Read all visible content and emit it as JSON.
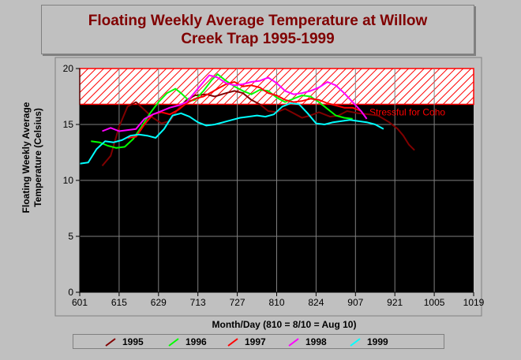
{
  "title": "Floating Weekly Average Temperature at Willow Creek Trap 1995-1999",
  "xlabel": "Month/Day (810 = 8/10 = Aug 10)",
  "ylabel_line1": "Floating Weekly Average",
  "ylabel_line2": "Temperature (Celsius)",
  "threshold_label": "Stressful for Coho",
  "colors": {
    "1995": "#800000",
    "1996": "#00ff00",
    "1997": "#ff0000",
    "1998": "#ff00ff",
    "1999": "#00ffff",
    "title": "#800000",
    "plot_bg": "#000000",
    "hatch": "#ff0000"
  },
  "chart_data": {
    "type": "line",
    "title": "Floating Weekly Average Temperature at Willow Creek Trap 1995-1999",
    "xlabel": "Month/Day (810 = 8/10 = Aug 10)",
    "ylabel": "Floating Weekly Average Temperature (Celsius)",
    "x_ticks": [
      "601",
      "615",
      "629",
      "713",
      "727",
      "810",
      "824",
      "907",
      "921",
      "1005",
      "1019"
    ],
    "xlim_days": [
      0,
      140
    ],
    "ylim": [
      0,
      20
    ],
    "y_ticks": [
      0,
      5,
      10,
      15,
      20
    ],
    "grid": true,
    "legend_position": "bottom",
    "threshold": {
      "low": 16.8,
      "high": 20,
      "label": "Stressful for Coho"
    },
    "series": [
      {
        "name": "1995",
        "points": [
          [
            8,
            11.3
          ],
          [
            11,
            12.2
          ],
          [
            14,
            14.8
          ],
          [
            17,
            16.6
          ],
          [
            20,
            17.0
          ],
          [
            23,
            16.3
          ],
          [
            26,
            15.6
          ],
          [
            29,
            15.1
          ],
          [
            32,
            15.3
          ],
          [
            35,
            16.4
          ],
          [
            38,
            17.2
          ],
          [
            41,
            17.6
          ],
          [
            45,
            17.7
          ],
          [
            48,
            17.5
          ],
          [
            52,
            17.8
          ],
          [
            55,
            18.0
          ],
          [
            58,
            17.8
          ],
          [
            61,
            17.2
          ],
          [
            64,
            16.8
          ],
          [
            67,
            16.2
          ],
          [
            70,
            16.1
          ],
          [
            73,
            16.4
          ],
          [
            76,
            16.0
          ],
          [
            79,
            15.6
          ],
          [
            82,
            15.8
          ],
          [
            85,
            16.1
          ],
          [
            89,
            15.7
          ],
          [
            92,
            15.8
          ],
          [
            95,
            16.2
          ],
          [
            99,
            16.0
          ],
          [
            103,
            15.9
          ],
          [
            106,
            15.8
          ],
          [
            110,
            15.2
          ],
          [
            113,
            14.6
          ],
          [
            115,
            14.0
          ],
          [
            117,
            13.2
          ],
          [
            119,
            12.7
          ]
        ]
      },
      {
        "name": "1996",
        "points": [
          [
            4,
            13.5
          ],
          [
            7,
            13.4
          ],
          [
            10,
            13.1
          ],
          [
            13,
            12.9
          ],
          [
            16,
            13.0
          ],
          [
            19,
            13.7
          ],
          [
            22,
            14.8
          ],
          [
            25,
            16.0
          ],
          [
            28,
            17.0
          ],
          [
            31,
            17.8
          ],
          [
            34,
            18.2
          ],
          [
            36,
            17.8
          ],
          [
            39,
            17.1
          ],
          [
            41,
            17.2
          ],
          [
            44,
            18.0
          ],
          [
            47,
            19.0
          ],
          [
            49,
            19.5
          ],
          [
            52,
            18.9
          ],
          [
            55,
            18.4
          ],
          [
            58,
            18.0
          ],
          [
            61,
            17.7
          ],
          [
            64,
            18.1
          ],
          [
            67,
            18.0
          ],
          [
            70,
            17.4
          ],
          [
            73,
            17.0
          ],
          [
            76,
            17.3
          ],
          [
            79,
            17.6
          ],
          [
            82,
            17.5
          ],
          [
            85,
            17.0
          ],
          [
            88,
            16.4
          ],
          [
            91,
            15.8
          ],
          [
            94,
            15.6
          ],
          [
            97,
            15.5
          ]
        ]
      },
      {
        "name": "1997",
        "points": [
          [
            17,
            13.8
          ],
          [
            20,
            13.9
          ],
          [
            23,
            15.0
          ],
          [
            26,
            15.9
          ],
          [
            29,
            16.1
          ],
          [
            32,
            15.9
          ],
          [
            35,
            16.3
          ],
          [
            38,
            16.9
          ],
          [
            41,
            17.3
          ],
          [
            44,
            17.5
          ],
          [
            47,
            17.9
          ],
          [
            49,
            18.2
          ],
          [
            52,
            18.6
          ],
          [
            55,
            18.8
          ],
          [
            58,
            18.4
          ],
          [
            61,
            18.5
          ],
          [
            64,
            18.3
          ],
          [
            67,
            17.8
          ],
          [
            70,
            17.6
          ],
          [
            73,
            17.2
          ],
          [
            76,
            17.0
          ],
          [
            79,
            17.1
          ],
          [
            82,
            17.3
          ],
          [
            85,
            17.2
          ],
          [
            88,
            16.9
          ],
          [
            91,
            16.7
          ],
          [
            94,
            16.5
          ],
          [
            97,
            16.5
          ],
          [
            100,
            16.2
          ]
        ]
      },
      {
        "name": "1998",
        "points": [
          [
            8,
            14.4
          ],
          [
            11,
            14.7
          ],
          [
            14,
            14.4
          ],
          [
            17,
            14.5
          ],
          [
            20,
            14.6
          ],
          [
            23,
            15.5
          ],
          [
            26,
            15.9
          ],
          [
            29,
            16.2
          ],
          [
            32,
            16.5
          ],
          [
            35,
            16.7
          ],
          [
            38,
            17.0
          ],
          [
            41,
            17.9
          ],
          [
            44,
            18.8
          ],
          [
            46,
            19.4
          ],
          [
            49,
            19.2
          ],
          [
            52,
            18.7
          ],
          [
            55,
            18.5
          ],
          [
            58,
            18.6
          ],
          [
            61,
            18.8
          ],
          [
            64,
            18.9
          ],
          [
            67,
            19.2
          ],
          [
            70,
            18.7
          ],
          [
            73,
            18.0
          ],
          [
            76,
            17.7
          ],
          [
            79,
            17.8
          ],
          [
            82,
            18.0
          ],
          [
            85,
            18.3
          ],
          [
            88,
            18.8
          ],
          [
            91,
            18.5
          ],
          [
            94,
            17.8
          ],
          [
            97,
            17.0
          ],
          [
            100,
            16.2
          ],
          [
            102,
            15.5
          ]
        ]
      },
      {
        "name": "1999",
        "points": [
          [
            0,
            11.5
          ],
          [
            3,
            11.6
          ],
          [
            6,
            12.8
          ],
          [
            9,
            13.5
          ],
          [
            12,
            13.4
          ],
          [
            15,
            13.6
          ],
          [
            18,
            14.0
          ],
          [
            21,
            14.1
          ],
          [
            24,
            14.0
          ],
          [
            27,
            13.8
          ],
          [
            30,
            14.6
          ],
          [
            33,
            15.8
          ],
          [
            36,
            16.0
          ],
          [
            39,
            15.7
          ],
          [
            42,
            15.2
          ],
          [
            45,
            14.9
          ],
          [
            48,
            15.0
          ],
          [
            51,
            15.2
          ],
          [
            54,
            15.4
          ],
          [
            57,
            15.6
          ],
          [
            60,
            15.7
          ],
          [
            63,
            15.8
          ],
          [
            66,
            15.7
          ],
          [
            69,
            15.9
          ],
          [
            72,
            16.6
          ],
          [
            75,
            16.9
          ],
          [
            78,
            16.8
          ],
          [
            81,
            16.0
          ],
          [
            84,
            15.1
          ],
          [
            87,
            15.0
          ],
          [
            90,
            15.2
          ],
          [
            93,
            15.3
          ],
          [
            96,
            15.4
          ],
          [
            99,
            15.3
          ],
          [
            102,
            15.2
          ],
          [
            105,
            15.0
          ],
          [
            108,
            14.6
          ]
        ]
      }
    ]
  }
}
